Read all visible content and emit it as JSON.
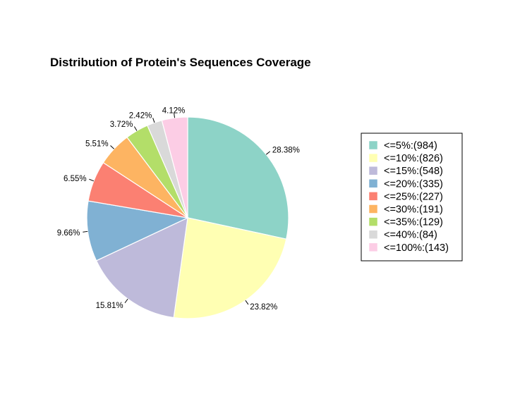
{
  "chart_data": {
    "type": "pie",
    "title": "Distribution of Protein's Sequences Coverage",
    "slices": [
      {
        "legend": "<=5%:(984)",
        "value": 984,
        "percent_label": "28.38%",
        "color": "#8DD3C7"
      },
      {
        "legend": "<=10%:(826)",
        "value": 826,
        "percent_label": "23.82%",
        "color": "#FFFFB3"
      },
      {
        "legend": "<=15%:(548)",
        "value": 548,
        "percent_label": "15.81%",
        "color": "#BEBADA"
      },
      {
        "legend": "<=20%:(335)",
        "value": 335,
        "percent_label": "9.66%",
        "color": "#80B1D3"
      },
      {
        "legend": "<=25%:(227)",
        "value": 227,
        "percent_label": "6.55%",
        "color": "#FB8072"
      },
      {
        "legend": "<=30%:(191)",
        "value": 191,
        "percent_label": "5.51%",
        "color": "#FDB462"
      },
      {
        "legend": "<=35%:(129)",
        "value": 129,
        "percent_label": "3.72%",
        "color": "#B3DE69"
      },
      {
        "legend": "<=40%:(84)",
        "value": 84,
        "percent_label": "2.42%",
        "color": "#D9D9D9"
      },
      {
        "legend": "<=100%:(143)",
        "value": 143,
        "percent_label": "4.12%",
        "color": "#FCCDE5"
      }
    ],
    "start_angle": "12 o'clock",
    "direction": "clockwise",
    "legend_position": "right"
  }
}
